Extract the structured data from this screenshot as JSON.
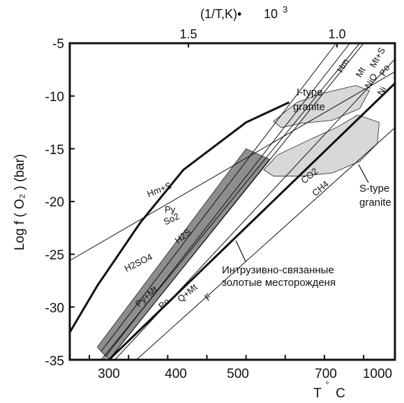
{
  "chart_data": {
    "type": "line",
    "title": "",
    "top_axis_label": "(1/T,K)•",
    "top_axis_exponent": "3",
    "top_axis_multiplier": "10",
    "top_ticks": [
      "1.5",
      "1.0"
    ],
    "xlabel": "T",
    "xlabel_degree": "°",
    "xlabel_unit": "C",
    "ylabel": "Log f ( O₂ )  (bar)",
    "xlim": [
      250,
      1080
    ],
    "ylim": [
      -35,
      -5
    ],
    "x_ticks": [
      300,
      400,
      500,
      600,
      700,
      800,
      900,
      1000
    ],
    "x_tick_labels": [
      "300",
      "400",
      "500",
      "700",
      "1000"
    ],
    "y_ticks": [
      -35,
      -30,
      -25,
      -20,
      -15,
      -10,
      -5
    ],
    "y_tick_labels": [
      "-35",
      "-30",
      "-25",
      "-20",
      "-15",
      "-10",
      "-5"
    ],
    "grid": false,
    "series": [
      {
        "name": "Hm+S",
        "style": "thin",
        "points": [
          [
            250,
            -25.6
          ],
          [
            1080,
            -7.7
          ]
        ]
      },
      {
        "name": "H2SO4",
        "style": "thick",
        "points": [
          [
            250,
            -32.4
          ],
          [
            320,
            -28.0
          ],
          [
            430,
            -22.0
          ],
          [
            540,
            -17.0
          ],
          [
            700,
            -12.5
          ],
          [
            810,
            -10.6
          ]
        ]
      },
      {
        "name": "Hm",
        "style": "thin",
        "points": [
          [
            330,
            -34.2
          ],
          [
            930,
            -5.0
          ]
        ]
      },
      {
        "name": "Mt",
        "style": "thin",
        "points": [
          [
            335,
            -35.0
          ],
          [
            965,
            -5.0
          ]
        ]
      },
      {
        "name": "Ni/O",
        "style": "thin",
        "points": [
          [
            350,
            -35.0
          ],
          [
            1000,
            -5.0
          ]
        ]
      },
      {
        "name": "Ni",
        "style": "thin",
        "points": [
          [
            365,
            -35.0
          ],
          [
            1080,
            -6.5
          ]
        ]
      },
      {
        "name": "Po",
        "style": "thick",
        "points": [
          [
            350,
            -35.0
          ],
          [
            1080,
            -8.8
          ]
        ]
      },
      {
        "name": "F",
        "style": "thin",
        "points": [
          [
            420,
            -35.0
          ],
          [
            1080,
            -13.0
          ]
        ]
      },
      {
        "name": "Py",
        "style": "thin",
        "points": [
          [
            330,
            -35.0
          ],
          [
            990,
            -5.0
          ]
        ]
      }
    ],
    "regions": [
      {
        "name": "gold_deposits",
        "color": "#8e8e8e",
        "points": [
          [
            320,
            -33.8
          ],
          [
            700,
            -15.0
          ],
          [
            760,
            -16.0
          ],
          [
            350,
            -35.0
          ]
        ]
      },
      {
        "name": "I-type granite",
        "color": "#d8d8d8",
        "points": [
          [
            770,
            -12.4
          ],
          [
            830,
            -10.6
          ],
          [
            890,
            -9.8
          ],
          [
            980,
            -9.0
          ],
          [
            1015,
            -9.5
          ],
          [
            990,
            -11.2
          ],
          [
            920,
            -12.3
          ],
          [
            840,
            -12.6
          ],
          [
            790,
            -13.0
          ]
        ]
      },
      {
        "name": "S-type granite",
        "color": "#d8d8d8",
        "points": [
          [
            745,
            -17.0
          ],
          [
            780,
            -15.6
          ],
          [
            870,
            -14.0
          ],
          [
            930,
            -13.0
          ],
          [
            985,
            -11.8
          ],
          [
            1040,
            -12.5
          ],
          [
            1035,
            -14.5
          ],
          [
            990,
            -16.2
          ],
          [
            920,
            -17.3
          ],
          [
            840,
            -17.6
          ],
          [
            770,
            -17.6
          ]
        ]
      }
    ],
    "labels": {
      "hm_s_lower": "Hm+S",
      "py": "Py",
      "so2": "So2",
      "h2s": "H2S",
      "h2so4": "H2SO4",
      "py_mt": "Py+Mt",
      "po_low": "Po",
      "q_mt": "Q+Mt",
      "f": "F",
      "co2": "CO2",
      "ch4": "CH4",
      "hm_top": "Hm",
      "mt_top": "Mt",
      "mt_s_top": "Mt+S",
      "nio_top": "NiO",
      "po_top": "Po",
      "ni_top": "Ni",
      "i_type_1": "I-type",
      "i_type_2": "granite",
      "s_type_1": "S-type",
      "s_type_2": "granite",
      "gold_1": "Интрузивно-связанные",
      "gold_2": "золотые месторожденя"
    }
  }
}
